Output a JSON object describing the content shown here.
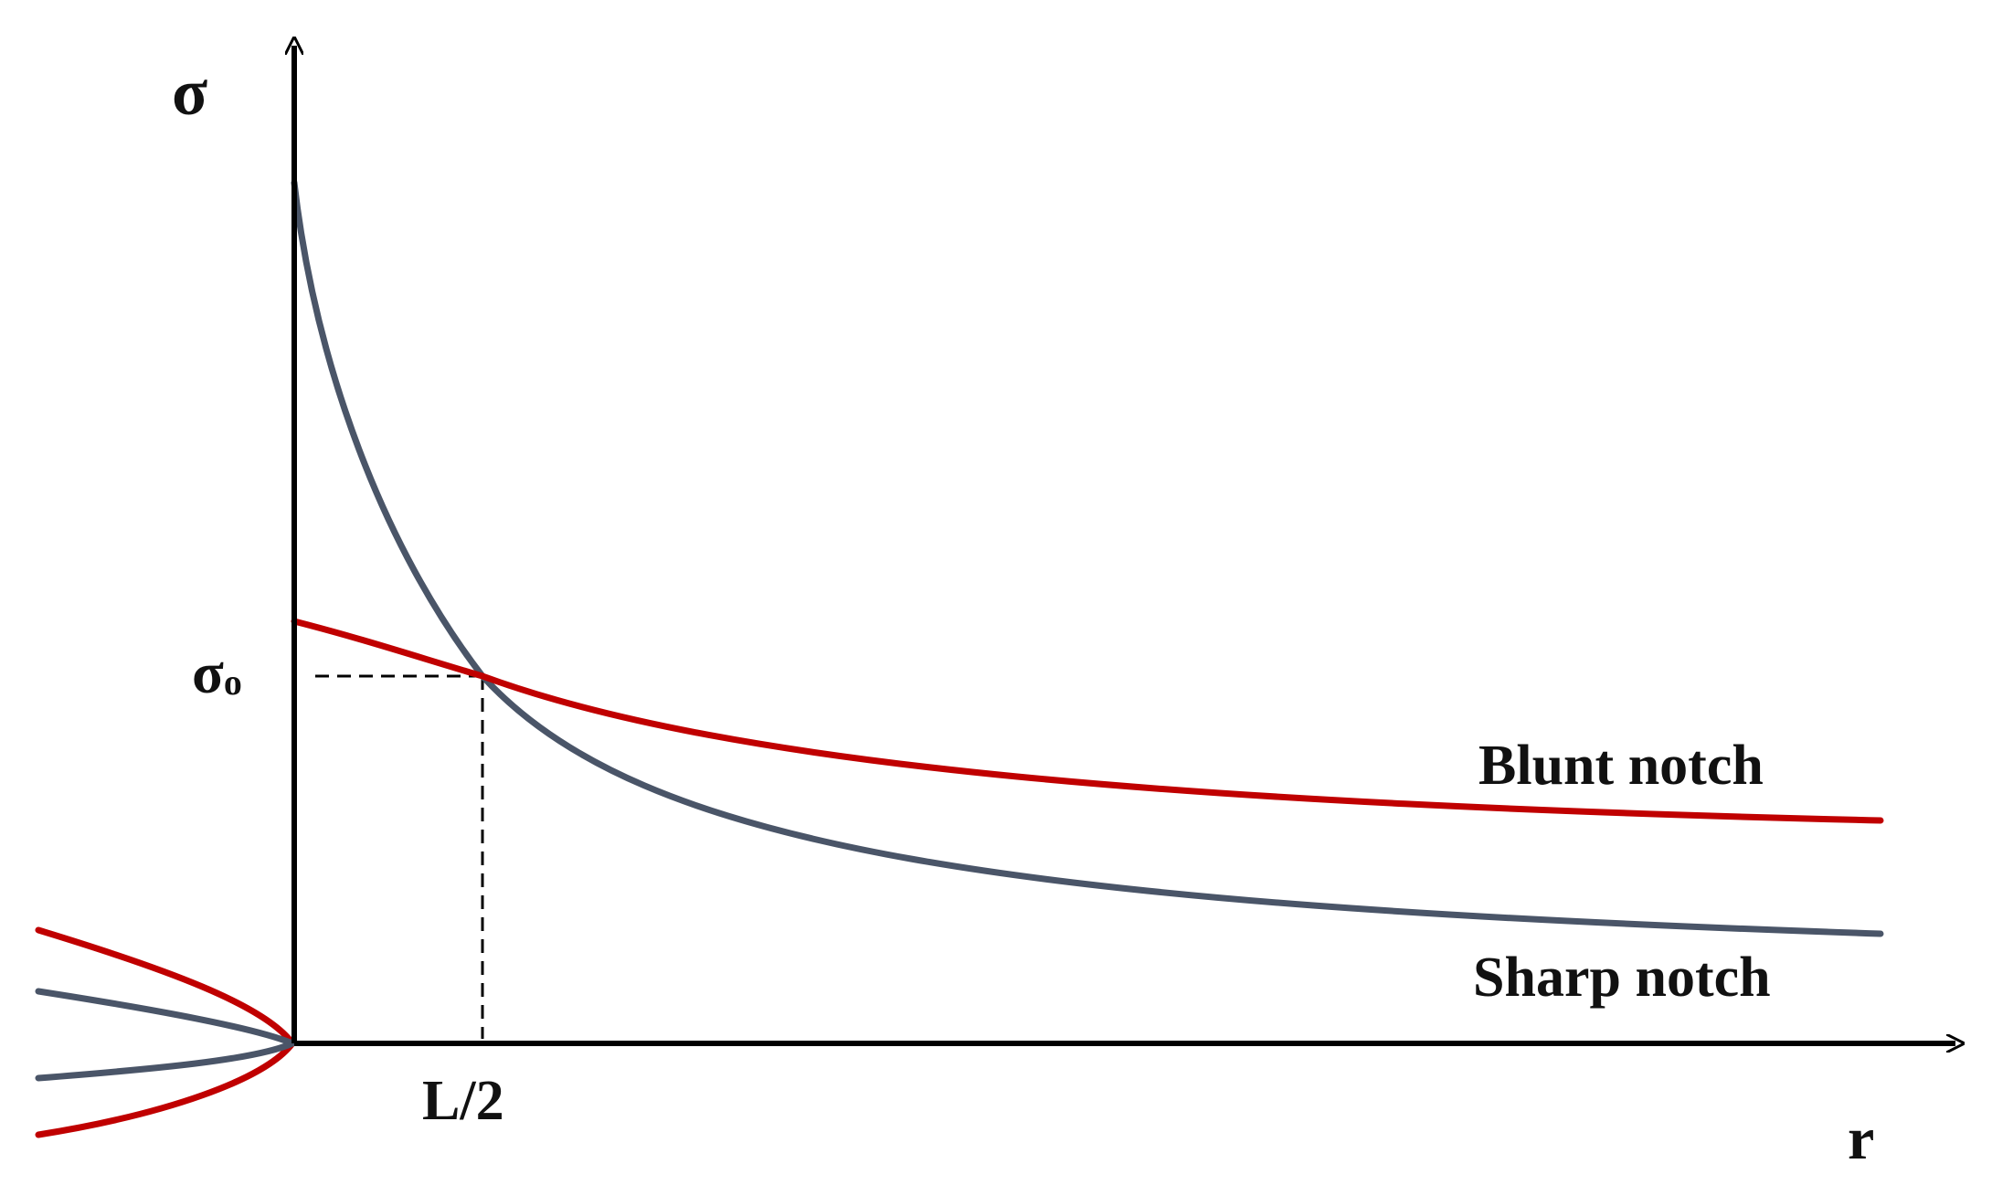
{
  "diagram": {
    "axes": {
      "y_label": "σ",
      "x_label": "r",
      "color": "#000000"
    },
    "reference": {
      "sigma_label": "σ",
      "sigma_subscript": "o",
      "distance_label": "L/2"
    },
    "curves": [
      {
        "name": "Blunt notch",
        "color": "#c00000"
      },
      {
        "name": "Sharp notch",
        "color": "#4a5568"
      }
    ]
  }
}
